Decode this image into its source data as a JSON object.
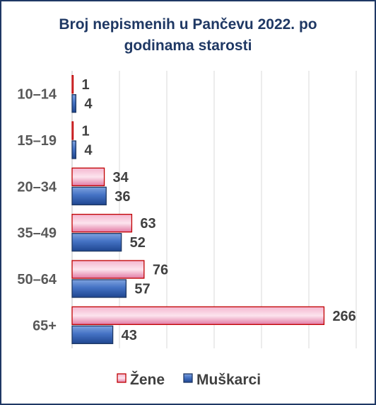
{
  "chart_data": {
    "type": "bar",
    "orientation": "horizontal",
    "title": "Broj nepismenih u Pančevu 2022. po godinama starosti",
    "categories": [
      "10–14",
      "15–19",
      "20–34",
      "35–49",
      "50–64",
      "65+"
    ],
    "series": [
      {
        "name": "Žene",
        "values": [
          1,
          1,
          34,
          63,
          76,
          266
        ],
        "color": "#e87fa8",
        "border": "#c00000"
      },
      {
        "name": "Muškarci",
        "values": [
          4,
          4,
          36,
          52,
          57,
          43
        ],
        "color": "#4472c4",
        "border": "#1f3864"
      }
    ],
    "xlim": [
      0,
      300
    ],
    "grid": true,
    "legend": "bottom"
  }
}
